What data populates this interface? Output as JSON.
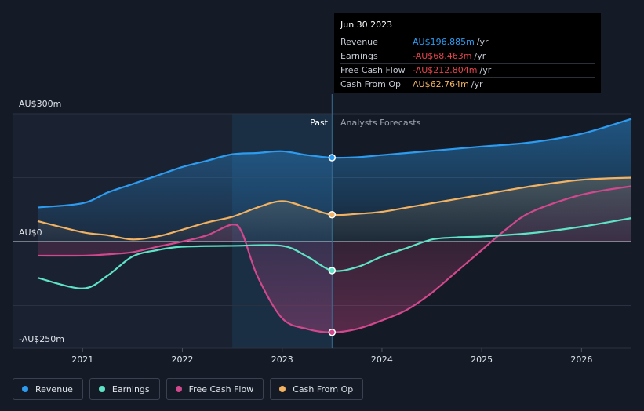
{
  "tooltip": {
    "date": "Jun 30 2023",
    "rows": [
      {
        "name": "Revenue",
        "value": "AU$196.885m",
        "unit": "/yr",
        "color": "#2d9cf0"
      },
      {
        "name": "Earnings",
        "value": "-AU$68.463m",
        "unit": "/yr",
        "color": "#e8434c"
      },
      {
        "name": "Free Cash Flow",
        "value": "-AU$212.804m",
        "unit": "/yr",
        "color": "#e8434c"
      },
      {
        "name": "Cash From Op",
        "value": "AU$62.764m",
        "unit": "/yr",
        "color": "#f2b261"
      }
    ]
  },
  "legend": [
    {
      "label": "Revenue",
      "color": "#2d9cf0"
    },
    {
      "label": "Earnings",
      "color": "#5fe3c6"
    },
    {
      "label": "Free Cash Flow",
      "color": "#d1488c"
    },
    {
      "label": "Cash From Op",
      "color": "#f2b261"
    }
  ],
  "chart_data": {
    "type": "line",
    "title": "",
    "y_labels": {
      "top": "AU$300m",
      "zero": "AU$0",
      "bottom": "-AU$250m"
    },
    "ylim": [
      -250,
      300
    ],
    "xlim": [
      2020.55,
      2026.5
    ],
    "x_ticks": [
      {
        "value": 2021.0,
        "label": "2021"
      },
      {
        "value": 2022.0,
        "label": "2022"
      },
      {
        "value": 2023.0,
        "label": "2023"
      },
      {
        "value": 2024.0,
        "label": "2024"
      },
      {
        "value": 2025.0,
        "label": "2025"
      },
      {
        "value": 2026.0,
        "label": "2026"
      }
    ],
    "highlight_start": 2022.5,
    "divider": 2023.5,
    "past_label": "Past",
    "forecast_label": "Analysts Forecasts",
    "series": [
      {
        "name": "Revenue",
        "color": "#2d9cf0",
        "points": [
          [
            2020.55,
            80
          ],
          [
            2021.0,
            90
          ],
          [
            2021.25,
            115
          ],
          [
            2021.5,
            135
          ],
          [
            2021.75,
            155
          ],
          [
            2022.0,
            175
          ],
          [
            2022.25,
            190
          ],
          [
            2022.5,
            205
          ],
          [
            2022.75,
            208
          ],
          [
            2023.0,
            212
          ],
          [
            2023.25,
            203
          ],
          [
            2023.5,
            197
          ],
          [
            2023.75,
            198
          ],
          [
            2024.0,
            203
          ],
          [
            2024.25,
            208
          ],
          [
            2024.5,
            213
          ],
          [
            2024.75,
            218
          ],
          [
            2025.0,
            223
          ],
          [
            2025.5,
            233
          ],
          [
            2026.0,
            253
          ],
          [
            2026.5,
            288
          ]
        ]
      },
      {
        "name": "Cash From Op",
        "color": "#f2b261",
        "points": [
          [
            2020.55,
            48
          ],
          [
            2021.0,
            22
          ],
          [
            2021.25,
            15
          ],
          [
            2021.5,
            5
          ],
          [
            2021.75,
            12
          ],
          [
            2022.0,
            28
          ],
          [
            2022.25,
            45
          ],
          [
            2022.5,
            58
          ],
          [
            2022.75,
            80
          ],
          [
            2023.0,
            95
          ],
          [
            2023.25,
            80
          ],
          [
            2023.5,
            63
          ],
          [
            2023.75,
            65
          ],
          [
            2024.0,
            70
          ],
          [
            2024.25,
            80
          ],
          [
            2024.5,
            90
          ],
          [
            2024.75,
            100
          ],
          [
            2025.0,
            110
          ],
          [
            2025.5,
            130
          ],
          [
            2026.0,
            145
          ],
          [
            2026.5,
            150
          ]
        ]
      },
      {
        "name": "Free Cash Flow",
        "color": "#d1488c",
        "points": [
          [
            2020.55,
            -33
          ],
          [
            2021.0,
            -33
          ],
          [
            2021.25,
            -30
          ],
          [
            2021.5,
            -25
          ],
          [
            2021.75,
            -12
          ],
          [
            2022.0,
            0
          ],
          [
            2022.25,
            15
          ],
          [
            2022.5,
            40
          ],
          [
            2022.6,
            20
          ],
          [
            2022.75,
            -80
          ],
          [
            2023.0,
            -180
          ],
          [
            2023.25,
            -205
          ],
          [
            2023.5,
            -213
          ],
          [
            2023.75,
            -205
          ],
          [
            2024.0,
            -185
          ],
          [
            2024.25,
            -160
          ],
          [
            2024.5,
            -120
          ],
          [
            2024.75,
            -70
          ],
          [
            2025.0,
            -20
          ],
          [
            2025.25,
            30
          ],
          [
            2025.5,
            70
          ],
          [
            2026.0,
            110
          ],
          [
            2026.5,
            130
          ]
        ]
      },
      {
        "name": "Earnings",
        "color": "#5fe3c6",
        "points": [
          [
            2020.55,
            -85
          ],
          [
            2021.0,
            -110
          ],
          [
            2021.25,
            -80
          ],
          [
            2021.5,
            -35
          ],
          [
            2021.75,
            -20
          ],
          [
            2022.0,
            -12
          ],
          [
            2022.5,
            -10
          ],
          [
            2023.0,
            -10
          ],
          [
            2023.25,
            -35
          ],
          [
            2023.5,
            -68
          ],
          [
            2023.75,
            -60
          ],
          [
            2024.0,
            -35
          ],
          [
            2024.25,
            -15
          ],
          [
            2024.5,
            5
          ],
          [
            2024.75,
            10
          ],
          [
            2025.0,
            12
          ],
          [
            2025.5,
            20
          ],
          [
            2026.0,
            35
          ],
          [
            2026.5,
            55
          ]
        ]
      }
    ]
  }
}
